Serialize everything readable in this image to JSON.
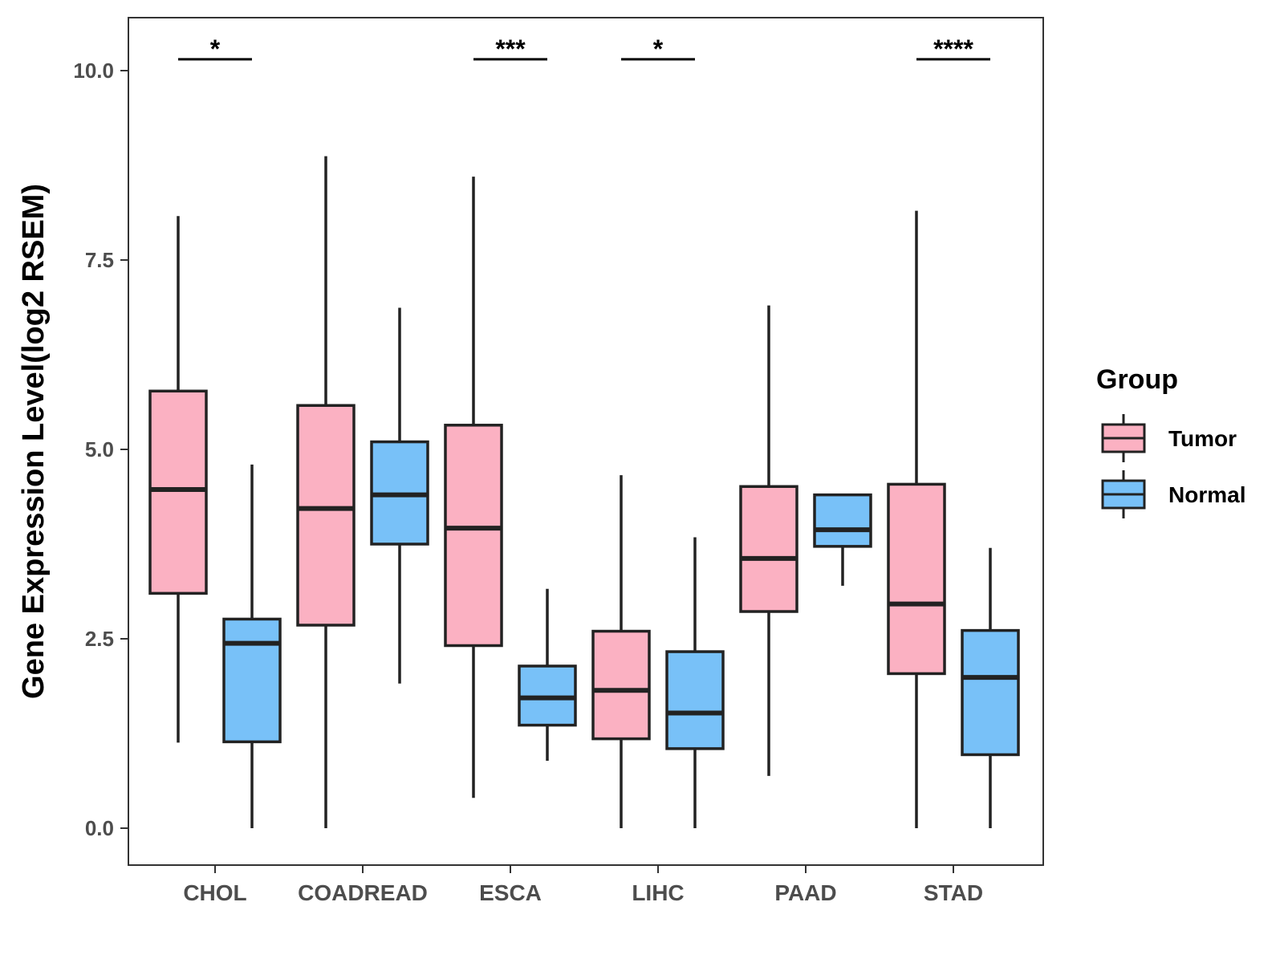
{
  "chart_data": {
    "type": "boxplot",
    "title": "",
    "xlabel": "",
    "ylabel": "Gene Expression Level(log2 RSEM)",
    "ylim": [
      -0.5,
      10.7
    ],
    "yticks": [
      0.0,
      2.5,
      5.0,
      7.5,
      10.0
    ],
    "ytick_labels": [
      "0.0",
      "2.5",
      "5.0",
      "7.5",
      "10.0"
    ],
    "categories": [
      "CHOL",
      "COADREAD",
      "ESCA",
      "LIHC",
      "PAAD",
      "STAD"
    ],
    "legend": {
      "title": "Group",
      "position": "right",
      "entries": [
        {
          "label": "Tumor",
          "color": "#FBB1C2"
        },
        {
          "label": "Normal",
          "color": "#78C1F8"
        }
      ]
    },
    "series": [
      {
        "name": "Tumor",
        "color": "#FBB1C2",
        "boxes": [
          {
            "min": 1.13,
            "q1": 3.1,
            "median": 4.47,
            "q3": 5.77,
            "max": 8.08
          },
          {
            "min": 0.0,
            "q1": 2.68,
            "median": 4.22,
            "q3": 5.58,
            "max": 8.87
          },
          {
            "min": 0.4,
            "q1": 2.41,
            "median": 3.96,
            "q3": 5.32,
            "max": 8.6
          },
          {
            "min": 0.0,
            "q1": 1.18,
            "median": 1.82,
            "q3": 2.6,
            "max": 4.66
          },
          {
            "min": 0.69,
            "q1": 2.86,
            "median": 3.56,
            "q3": 4.51,
            "max": 6.9
          },
          {
            "min": 0.0,
            "q1": 2.04,
            "median": 2.96,
            "q3": 4.54,
            "max": 8.15
          }
        ]
      },
      {
        "name": "Normal",
        "color": "#78C1F8",
        "boxes": [
          {
            "min": 0.0,
            "q1": 1.14,
            "median": 2.44,
            "q3": 2.76,
            "max": 4.8
          },
          {
            "min": 1.91,
            "q1": 3.75,
            "median": 4.4,
            "q3": 5.1,
            "max": 6.87
          },
          {
            "min": 0.89,
            "q1": 1.36,
            "median": 1.72,
            "q3": 2.14,
            "max": 3.16
          },
          {
            "min": 0.0,
            "q1": 1.05,
            "median": 1.52,
            "q3": 2.33,
            "max": 3.84
          },
          {
            "min": 3.2,
            "q1": 3.72,
            "median": 3.94,
            "q3": 4.4,
            "max": 4.4
          },
          {
            "min": 0.0,
            "q1": 0.97,
            "median": 1.99,
            "q3": 2.61,
            "max": 3.7
          }
        ]
      }
    ],
    "significance": [
      {
        "category": "CHOL",
        "label": "*",
        "y": 10.15
      },
      {
        "category": "ESCA",
        "label": "***",
        "y": 10.15
      },
      {
        "category": "LIHC",
        "label": "*",
        "y": 10.15
      },
      {
        "category": "STAD",
        "label": "****",
        "y": 10.15
      }
    ]
  }
}
